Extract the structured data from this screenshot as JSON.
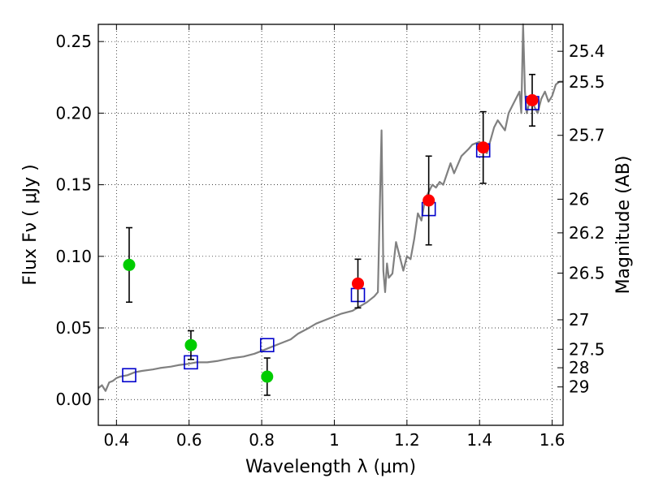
{
  "chart_data": {
    "type": "scatter",
    "xlabel": "Wavelength  λ (μm)",
    "ylabel": "Flux  Fν  ( μJy )",
    "y2label": "Magnitude (AB)",
    "xlim": [
      0.35,
      1.63
    ],
    "ylim": [
      -0.018,
      0.262
    ],
    "grid": true,
    "x_ticks": [
      0.4,
      0.6,
      0.8,
      1.0,
      1.2,
      1.4,
      1.6
    ],
    "x_tick_labels": [
      "0.4",
      "0.6",
      "0.8",
      "1",
      "1.2",
      "1.4",
      "1.6"
    ],
    "y_ticks": [
      0.0,
      0.05,
      0.1,
      0.15,
      0.2,
      0.25
    ],
    "y_tick_labels": [
      "0.00",
      "0.05",
      "0.10",
      "0.15",
      "0.20",
      "0.25"
    ],
    "mag_ticks": [
      {
        "label": "25.4",
        "flux": 0.2432
      },
      {
        "label": "25.5",
        "flux": 0.2218
      },
      {
        "label": "25.7",
        "flux": 0.1845
      },
      {
        "label": "26",
        "flux": 0.1399
      },
      {
        "label": "26.2",
        "flux": 0.1164
      },
      {
        "label": "26.5",
        "flux": 0.0883
      },
      {
        "label": "27",
        "flux": 0.0557
      },
      {
        "label": "27.5",
        "flux": 0.0351
      },
      {
        "label": "28",
        "flux": 0.0222
      },
      {
        "label": "29",
        "flux": 0.0088
      }
    ],
    "series": [
      {
        "style": "line",
        "color": "#808080",
        "x": [
          0.35,
          0.36,
          0.37,
          0.38,
          0.39,
          0.4,
          0.41,
          0.43,
          0.45,
          0.47,
          0.5,
          0.52,
          0.55,
          0.57,
          0.6,
          0.62,
          0.65,
          0.68,
          0.7,
          0.72,
          0.75,
          0.78,
          0.8,
          0.82,
          0.85,
          0.88,
          0.9,
          0.93,
          0.95,
          0.98,
          1.0,
          1.02,
          1.05,
          1.07,
          1.09,
          1.11,
          1.12,
          1.13,
          1.135,
          1.14,
          1.145,
          1.15,
          1.16,
          1.17,
          1.18,
          1.19,
          1.2,
          1.21,
          1.22,
          1.23,
          1.24,
          1.25,
          1.26,
          1.27,
          1.28,
          1.29,
          1.3,
          1.32,
          1.33,
          1.35,
          1.37,
          1.38,
          1.4,
          1.42,
          1.44,
          1.45,
          1.47,
          1.48,
          1.49,
          1.5,
          1.51,
          1.515,
          1.52,
          1.525,
          1.53,
          1.54,
          1.55,
          1.56,
          1.57,
          1.58,
          1.59,
          1.6,
          1.61,
          1.62,
          1.63
        ],
        "y": [
          0.008,
          0.01,
          0.006,
          0.012,
          0.013,
          0.015,
          0.016,
          0.017,
          0.019,
          0.02,
          0.021,
          0.022,
          0.023,
          0.024,
          0.025,
          0.026,
          0.026,
          0.027,
          0.028,
          0.029,
          0.03,
          0.032,
          0.034,
          0.036,
          0.039,
          0.042,
          0.046,
          0.05,
          0.053,
          0.056,
          0.058,
          0.06,
          0.062,
          0.065,
          0.068,
          0.072,
          0.075,
          0.188,
          0.09,
          0.075,
          0.095,
          0.085,
          0.088,
          0.11,
          0.1,
          0.09,
          0.1,
          0.098,
          0.112,
          0.13,
          0.125,
          0.14,
          0.145,
          0.15,
          0.148,
          0.152,
          0.15,
          0.165,
          0.158,
          0.17,
          0.175,
          0.178,
          0.18,
          0.172,
          0.19,
          0.195,
          0.188,
          0.2,
          0.205,
          0.21,
          0.215,
          0.2,
          0.262,
          0.215,
          0.2,
          0.21,
          0.205,
          0.2,
          0.21,
          0.215,
          0.208,
          0.212,
          0.22,
          0.222,
          0.222
        ]
      },
      {
        "style": "open-square",
        "color": "#0000cc",
        "x": [
          0.435,
          0.605,
          0.815,
          1.065,
          1.26,
          1.41,
          1.545
        ],
        "y": [
          0.017,
          0.026,
          0.038,
          0.073,
          0.133,
          0.174,
          0.207
        ]
      },
      {
        "style": "filled-circle-errorbar",
        "color": "#00cc00",
        "x": [
          0.435,
          0.605,
          0.815
        ],
        "y": [
          0.094,
          0.038,
          0.016
        ],
        "yerr": [
          0.026,
          0.01,
          0.013
        ]
      },
      {
        "style": "filled-circle-errorbar",
        "color": "#ff0000",
        "x": [
          1.065,
          1.26,
          1.41,
          1.545
        ],
        "y": [
          0.081,
          0.139,
          0.176,
          0.209
        ],
        "yerr": [
          0.017,
          0.031,
          0.025,
          0.018
        ]
      }
    ]
  }
}
